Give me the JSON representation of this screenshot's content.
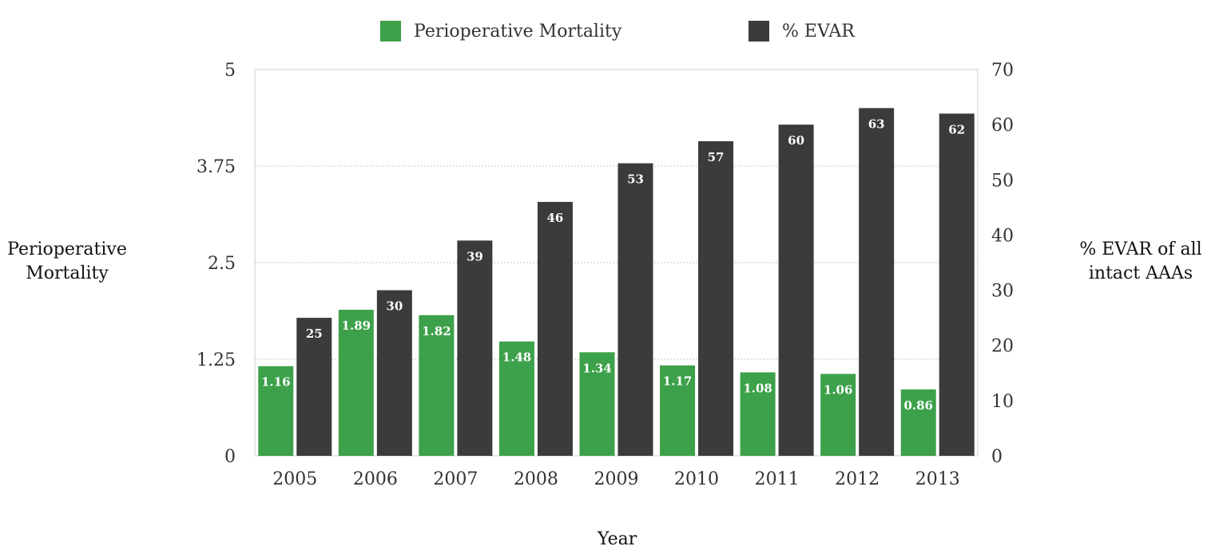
{
  "chart_data": {
    "type": "bar",
    "categories": [
      "2005",
      "2006",
      "2007",
      "2008",
      "2009",
      "2010",
      "2011",
      "2012",
      "2013"
    ],
    "series": [
      {
        "name": "Perioperative Mortality",
        "axis": "left",
        "color": "#3da04a",
        "values": [
          1.16,
          1.89,
          1.82,
          1.48,
          1.34,
          1.17,
          1.08,
          1.06,
          0.86
        ]
      },
      {
        "name": "% EVAR",
        "axis": "right",
        "color": "#3b3b3b",
        "values": [
          25,
          30,
          39,
          46,
          53,
          57,
          60,
          63,
          62
        ]
      }
    ],
    "data_labels": {
      "left": [
        "1.16",
        "1.89",
        "1.82",
        "1.48",
        "1.34",
        "1.17",
        "1.08",
        "1.06",
        "0.86"
      ],
      "right": [
        "25",
        "30",
        "39",
        "46",
        "53",
        "57",
        "60",
        "63",
        "62"
      ]
    },
    "xlabel": "Year",
    "ylabel_left": "Perioperative Mortality",
    "ylabel_right": "% EVAR of all intact AAAs",
    "ylim_left": [
      0,
      5
    ],
    "yticks_left": [
      "0",
      "1.25",
      "2.5",
      "3.75",
      "5"
    ],
    "ylim_right": [
      0,
      70
    ],
    "yticks_right": [
      "0",
      "10",
      "20",
      "30",
      "40",
      "50",
      "60",
      "70"
    ],
    "grid": "horizontal dotted at left-axis ticks",
    "legend_position": "top"
  }
}
